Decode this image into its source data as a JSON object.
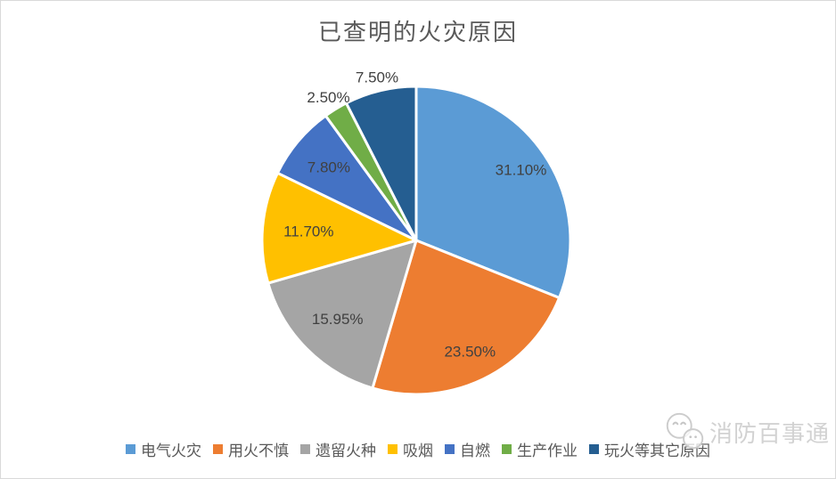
{
  "title": "已查明的火灾原因",
  "chart_data": {
    "type": "pie",
    "title": "已查明的火灾原因",
    "categories": [
      "电气火灾",
      "用火不慎",
      "遗留火种",
      "吸烟",
      "自燃",
      "生产作业",
      "玩火等其它原因"
    ],
    "values": [
      31.1,
      23.5,
      15.95,
      11.7,
      7.8,
      2.5,
      7.5
    ],
    "labels": [
      "31.10%",
      "23.50%",
      "15.95%",
      "11.70%",
      "7.80%",
      "2.50%",
      "7.50%"
    ],
    "colors": [
      "#5B9BD5",
      "#ED7D31",
      "#A5A5A5",
      "#FFC000",
      "#4472C4",
      "#70AD47",
      "#255E91"
    ],
    "label_positions": [
      "inside",
      "inside",
      "inside",
      "inside",
      "inside",
      "outside",
      "outside"
    ],
    "label_color": "#404040",
    "start_angle": 0,
    "direction": "clockwise",
    "legend_position": "bottom",
    "slice_border_color": "#ffffff"
  },
  "watermark": {
    "text": "消防百事通"
  }
}
